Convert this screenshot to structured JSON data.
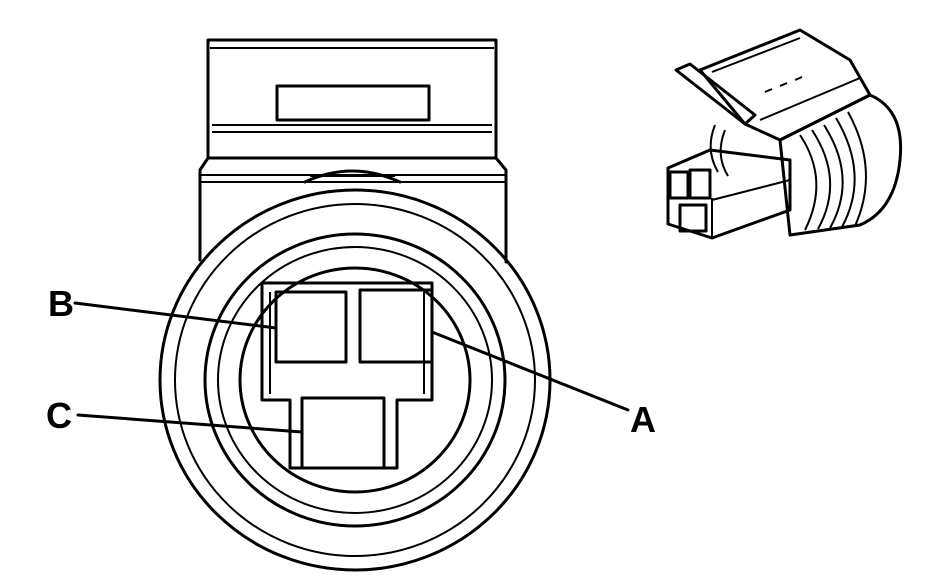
{
  "labels": {
    "a": "A",
    "b": "B",
    "c": "C"
  },
  "colors": {
    "line": "#000000",
    "background": "#ffffff"
  }
}
